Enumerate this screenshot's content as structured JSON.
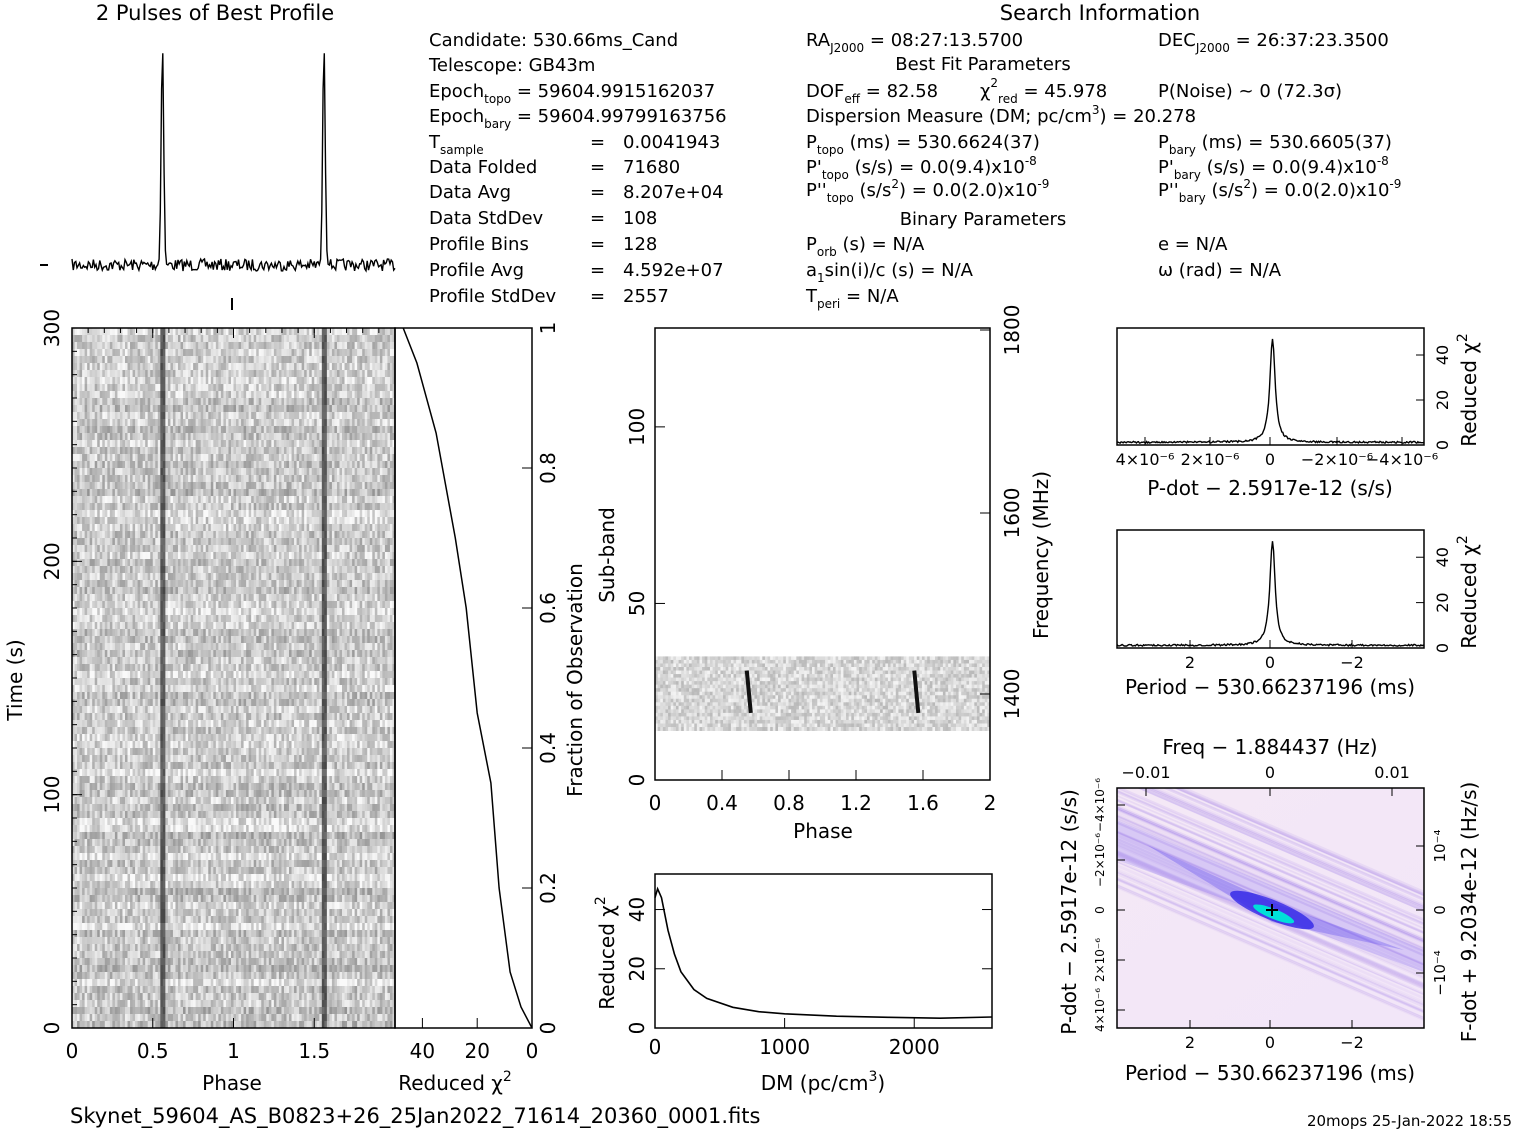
{
  "profile_title": "2 Pulses of Best Profile",
  "search_title": "Search Information",
  "candidate_info": [
    {
      "label": "Candidate:",
      "value": "530.66ms_Cand"
    },
    {
      "label": "Telescope:",
      "value": "GB43m"
    },
    {
      "label": "Epoch",
      "sub": "topo",
      "value": "= 59604.9915162037"
    },
    {
      "label": "Epoch",
      "sub": "bary",
      "value": "= 59604.99799163756"
    },
    {
      "label": "T",
      "sub": "sample",
      "value": "0.0041943"
    },
    {
      "label": "Data Folded",
      "value": "71680"
    },
    {
      "label": "Data Avg",
      "value": "8.207e+04"
    },
    {
      "label": "Data StdDev",
      "value": "108"
    },
    {
      "label": "Profile Bins",
      "value": "128"
    },
    {
      "label": "Profile Avg",
      "value": "4.592e+07"
    },
    {
      "label": "Profile StdDev",
      "value": "2557"
    }
  ],
  "search_info": {
    "ra": "= 08:27:13.5700",
    "dec": "= 26:37:23.3500",
    "best_fit_title": "Best Fit Parameters",
    "dof": "= 82.58",
    "chi2red": "= 45.978",
    "p_noise": "P(Noise) ~ 0   (72.3σ)",
    "dm_line": "Dispersion Measure (DM; pc/cm",
    "dm_value": ") = 20.278",
    "p_topo": "(ms) =  530.6624(37)",
    "p_bary": "(ms) =  530.6605(37)",
    "pd_topo": "(s/s) = 0.0(9.4)x10",
    "pd_bary": "(s/s) = 0.0(9.4)x10",
    "pdd_topo": "(s/s",
    "pdd_bary": "(s/s",
    "pdd_topo_val": ") = 0.0(2.0)x10",
    "pdd_bary_val": ") = 0.0(2.0)x10",
    "exp8": "-8",
    "exp9": "-9",
    "binary_title": "Binary Parameters",
    "p_orb": "(s) = N/A",
    "e": "e = N/A",
    "a1sini": "sin(i)/c (s) = N/A",
    "omega": "ω (rad) = N/A",
    "t_peri": "= N/A"
  },
  "axes": {
    "time_label": "Time (s)",
    "phase_label": "Phase",
    "redchi_label": "Reduced χ",
    "fraction_label": "Fraction of Observation",
    "subband_label": "Sub-band",
    "frequency_label": "Frequency (MHz)",
    "dm_label": "DM (pc/cm",
    "pdot_label": "P-dot − 2.5917e-12 (s/s)",
    "period_label": "Period − 530.66237196 (ms)",
    "freq_label": "Freq − 1.884437 (Hz)",
    "fdot_label": "F-dot + 9.2034e-12 (Hz/s)",
    "redchi_short": "Reduced χ"
  },
  "footer": {
    "filename": "Skynet_59604_AS_B0823+26_25Jan2022_71614_20360_0001.fits",
    "stamp": "20mops 25-Jan-2022 18:55"
  },
  "chart_data": [
    {
      "type": "line",
      "title": "2 Pulses of Best Profile",
      "x_range": [
        0,
        2
      ],
      "pulse_phases": [
        0.56,
        1.56
      ],
      "note_values": []
    },
    {
      "type": "heatmap",
      "xlabel": "Phase",
      "ylabel": "Time (s)",
      "x_ticks": [
        "0",
        "0.5",
        "1",
        "1.5"
      ],
      "y_ticks": [
        "0",
        "100",
        "200",
        "300"
      ],
      "xlim": [
        0,
        2
      ],
      "ylim": [
        0,
        300
      ],
      "pulse_phases": [
        0.56,
        1.56
      ]
    },
    {
      "type": "line",
      "xlabel": "Reduced χ2",
      "x_ticks": [
        "40",
        "20",
        "0"
      ],
      "xlim": [
        50,
        0
      ],
      "right_axis": "Fraction of Observation",
      "y_ticks": [
        "0",
        "0.2",
        "0.4",
        "0.6",
        "0.8",
        "1"
      ],
      "points": [
        [
          0,
          0
        ],
        [
          4,
          0.03
        ],
        [
          8,
          0.08
        ],
        [
          12,
          0.2
        ],
        [
          15,
          0.35
        ],
        [
          20,
          0.45
        ],
        [
          24,
          0.6
        ],
        [
          28,
          0.7
        ],
        [
          35,
          0.85
        ],
        [
          42,
          0.95
        ],
        [
          47,
          1.0
        ]
      ]
    },
    {
      "type": "heatmap",
      "xlabel": "Phase",
      "ylabel": "Sub-band",
      "x_ticks": [
        "0",
        "0.4",
        "0.8",
        "1.2",
        "1.6",
        "2"
      ],
      "y_ticks": [
        "0",
        "50",
        "100"
      ],
      "right_axis": "Frequency (MHz)",
      "freq_ticks": [
        "1400",
        "1600",
        "1800"
      ],
      "xlim": [
        0,
        2
      ],
      "ylim": [
        0,
        128
      ],
      "band_subbands": [
        14,
        35
      ],
      "pulse_phases": [
        0.56,
        1.56
      ]
    },
    {
      "type": "line",
      "xlabel": "DM (pc/cm3)",
      "ylabel": "Reduced χ2",
      "x_ticks": [
        "0",
        "1000",
        "2000"
      ],
      "y_ticks": [
        "0",
        "20",
        "40"
      ],
      "xlim": [
        0,
        2600
      ],
      "ylim": [
        0,
        52
      ],
      "points": [
        [
          0,
          44
        ],
        [
          20,
          47
        ],
        [
          50,
          44
        ],
        [
          100,
          33
        ],
        [
          150,
          25
        ],
        [
          200,
          19
        ],
        [
          300,
          13
        ],
        [
          400,
          10
        ],
        [
          600,
          7
        ],
        [
          800,
          5.5
        ],
        [
          1000,
          4.8
        ],
        [
          1400,
          4
        ],
        [
          1800,
          3.6
        ],
        [
          2200,
          3.3
        ],
        [
          2600,
          3.7
        ]
      ]
    },
    {
      "type": "line",
      "xlabel": "P-dot − 2.5917e-12 (s/s)",
      "ylabel": "Reduced χ2",
      "x_ticks": [
        "4×10⁻⁶",
        "2×10⁻⁶",
        "0",
        "−2×10⁻⁶",
        "−4×10⁻⁶"
      ],
      "y_ticks": [
        "0",
        "20",
        "40"
      ],
      "peak": 46
    },
    {
      "type": "line",
      "xlabel": "Period − 530.66237196 (ms)",
      "ylabel": "Reduced χ2",
      "x_ticks": [
        "2",
        "0",
        "−2"
      ],
      "y_ticks": [
        "0",
        "20",
        "40"
      ],
      "peak": 46
    },
    {
      "type": "heatmap",
      "xlabel": "Period − 530.66237196 (ms)",
      "ylabel": "P-dot − 2.5917e-12 (s/s)",
      "top_axis": "Freq − 1.884437 (Hz)",
      "top_ticks": [
        "−0.01",
        "0",
        "0.01"
      ],
      "right_axis": "F-dot + 9.2034e-12 (Hz/s)",
      "x_ticks": [
        "2",
        "0",
        "−2"
      ],
      "right_ticks": [
        "10⁻⁴",
        "0",
        "−10⁻⁴"
      ],
      "left_ticks": [
        "4×10⁻⁶",
        "2×10⁻⁶",
        "0",
        "−2×10⁻⁶",
        "−4×10⁻⁶"
      ]
    }
  ],
  "colors": {
    "ink": "#000000",
    "heat_purple": "#6b3cff",
    "heat_cyan": "#00ffd0"
  }
}
